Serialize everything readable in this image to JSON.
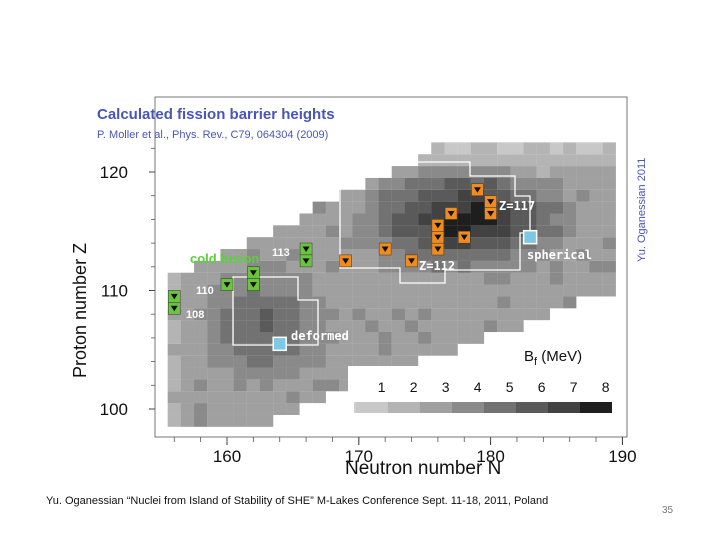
{
  "chart_data": {
    "type": "heatmap",
    "title": "Calculated fission barrier heights",
    "reference": "P. Moller et al., Phys. Rev., C79, 064304 (2009)",
    "credit": "Yu. Oganessian 2011",
    "xlabel": "Neutron number  N",
    "ylabel": "Proton number  Z",
    "xlim": [
      155,
      190
    ],
    "ylim": [
      99,
      123
    ],
    "x_ticks": [
      160,
      170,
      180,
      190
    ],
    "y_ticks": [
      100,
      110,
      120
    ],
    "legend": {
      "title": "B",
      "title_sub": "f",
      "unit": " (MeV)",
      "levels": [
        "1",
        "2",
        "3",
        "4",
        "5",
        "6",
        "7",
        "8"
      ],
      "colors": [
        "#c8c8c8",
        "#b4b4b4",
        "#a0a0a0",
        "#8a8a8a",
        "#727272",
        "#5a5a5a",
        "#424242",
        "#1e1e1e"
      ]
    },
    "region_labels": {
      "cold_fusion": "cold fusion",
      "spherical": "spherical",
      "deformed": "deformed",
      "z117": "Z=117",
      "z112": "Z=112",
      "z113": "113",
      "z110": "110",
      "z108": "108"
    },
    "green_marker_color": "#6cc43e",
    "orange_marker_color": "#f08c1e",
    "square_marker_color": "#7ec8e3",
    "green_markers": [
      {
        "N": 166,
        "Z": 113.5
      },
      {
        "N": 166,
        "Z": 112.5
      },
      {
        "N": 162,
        "Z": 111.5
      },
      {
        "N": 162,
        "Z": 110.5
      },
      {
        "N": 160,
        "Z": 110.5
      },
      {
        "N": 156,
        "Z": 109.5
      },
      {
        "N": 156,
        "Z": 108.5
      }
    ],
    "orange_markers": [
      {
        "N": 169,
        "Z": 112.5
      },
      {
        "N": 172,
        "Z": 113.5
      },
      {
        "N": 174,
        "Z": 112.5
      },
      {
        "N": 176,
        "Z": 113.5
      },
      {
        "N": 176,
        "Z": 114.5
      },
      {
        "N": 176,
        "Z": 115.5
      },
      {
        "N": 177,
        "Z": 116.5
      },
      {
        "N": 178,
        "Z": 114.5
      },
      {
        "N": 179,
        "Z": 118.5
      },
      {
        "N": 180,
        "Z": 117.5
      },
      {
        "N": 180,
        "Z": 116.5
      }
    ],
    "square_markers": [
      {
        "N": 164,
        "Z": 105.5
      },
      {
        "N": 183,
        "Z": 114.5
      }
    ]
  },
  "footer": "Yu. Oganessian “Nuclei from Island of Stability of SHE” M-Lakes Conference Sept. 11-18, 2011, Poland",
  "page_number": "35"
}
